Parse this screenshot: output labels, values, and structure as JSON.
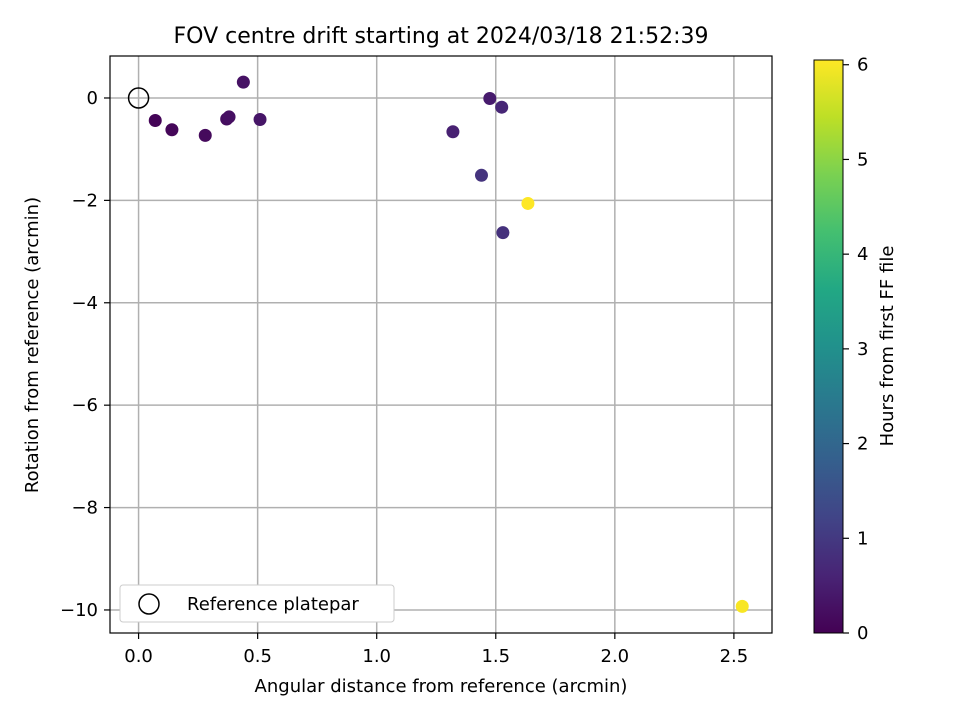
{
  "chart_data": {
    "type": "scatter",
    "title": "FOV centre drift starting at 2024/03/18 21:52:39",
    "xlabel": "Angular distance from reference (arcmin)",
    "ylabel": "Rotation from reference (arcmin)",
    "xlim": [
      -0.12,
      2.66
    ],
    "ylim": [
      -10.45,
      0.82
    ],
    "xticks": [
      0.0,
      0.5,
      1.0,
      1.5,
      2.0,
      2.5
    ],
    "xtick_labels": [
      "0.0",
      "0.5",
      "1.0",
      "1.5",
      "2.0",
      "2.5"
    ],
    "yticks": [
      0,
      -2,
      -4,
      -6,
      -8,
      -10
    ],
    "ytick_labels": [
      "0",
      "−2",
      "−4",
      "−6",
      "−8",
      "−10"
    ],
    "grid": true,
    "legend": {
      "position": "lower-left",
      "entries": [
        "Reference platepar"
      ]
    },
    "reference_point": {
      "x": 0.0,
      "y": 0.0
    },
    "colorbar": {
      "label": "Hours from first FF file",
      "range": [
        0,
        6.05
      ],
      "ticks": [
        0,
        1,
        2,
        3,
        4,
        5,
        6
      ],
      "tick_labels": [
        "0",
        "1",
        "2",
        "3",
        "4",
        "5",
        "6"
      ],
      "colormap": "viridis"
    },
    "points": [
      {
        "x": 0.07,
        "y": -0.44,
        "hours": 0.05
      },
      {
        "x": 0.14,
        "y": -0.62,
        "hours": 0.1
      },
      {
        "x": 0.28,
        "y": -0.73,
        "hours": 0.15
      },
      {
        "x": 0.37,
        "y": -0.41,
        "hours": 0.2
      },
      {
        "x": 0.38,
        "y": -0.37,
        "hours": 0.25
      },
      {
        "x": 0.44,
        "y": 0.31,
        "hours": 0.3
      },
      {
        "x": 0.51,
        "y": -0.42,
        "hours": 0.35
      },
      {
        "x": 1.32,
        "y": -0.66,
        "hours": 0.55
      },
      {
        "x": 1.44,
        "y": -1.51,
        "hours": 0.9
      },
      {
        "x": 1.475,
        "y": -0.01,
        "hours": 0.45
      },
      {
        "x": 1.525,
        "y": -0.18,
        "hours": 0.65
      },
      {
        "x": 1.53,
        "y": -2.63,
        "hours": 0.85
      },
      {
        "x": 1.635,
        "y": -2.06,
        "hours": 6.05
      },
      {
        "x": 2.535,
        "y": -9.93,
        "hours": 6.0
      }
    ]
  }
}
